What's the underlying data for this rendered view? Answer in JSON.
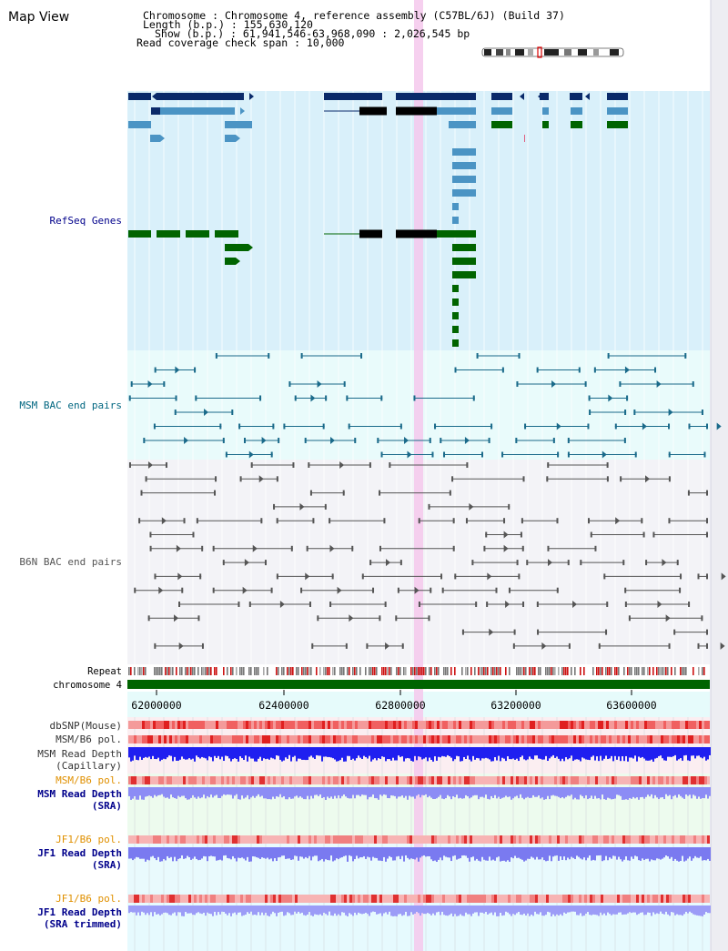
{
  "header": {
    "title": "Map View",
    "chromosome_label": "Chromosome    : Chromosome 4, reference assembly (C57BL/6J) (Build 37)",
    "length_label": "Length (b.p.) : 155,630,120",
    "show_label": "Show (b.p.) : 61,941,546-63,968,090 : 2,026,545 bp",
    "coverage_label": "Read coverage check span : 10,000"
  },
  "tracks": {
    "refseq": "RefSeq Genes",
    "msm_bac": "MSM BAC end pairs",
    "b6n_bac": "B6N BAC end pairs",
    "repeat": "Repeat",
    "chromosome": "chromosome 4",
    "dbsnp": "dbSNP(Mouse)",
    "msm_b6_pol_1": "MSM/B6 pol.",
    "msm_depth_cap_1": "MSM Read Depth",
    "msm_depth_cap_2": "(Capillary)",
    "msm_b6_pol_2": "MSM/B6 pol.",
    "msm_depth_sra_1": "MSM Read Depth",
    "msm_depth_sra_2": "(SRA)",
    "jf1_b6_pol_1": "JF1/B6 pol.",
    "jf1_depth_sra_1": "JF1 Read Depth",
    "jf1_depth_sra_2": "(SRA)",
    "jf1_b6_pol_2": "JF1/B6 pol.",
    "jf1_depth_trim_1": "JF1 Read Depth",
    "jf1_depth_trim_2": "(SRA trimmed)"
  },
  "axis": {
    "ticks": [
      "62000000",
      "62400000",
      "62800000",
      "63200000",
      "63600000"
    ]
  },
  "colors": {
    "gene_navy": "#0a2a6a",
    "gene_blue": "#4b94c4",
    "gene_green": "#006400",
    "msm_line": "#1a6a8a",
    "b6n_line": "#555555",
    "label_blue": "#00008b",
    "label_teal": "#006680",
    "label_orange": "#e09000",
    "highlight": "#f5c8ec"
  }
}
